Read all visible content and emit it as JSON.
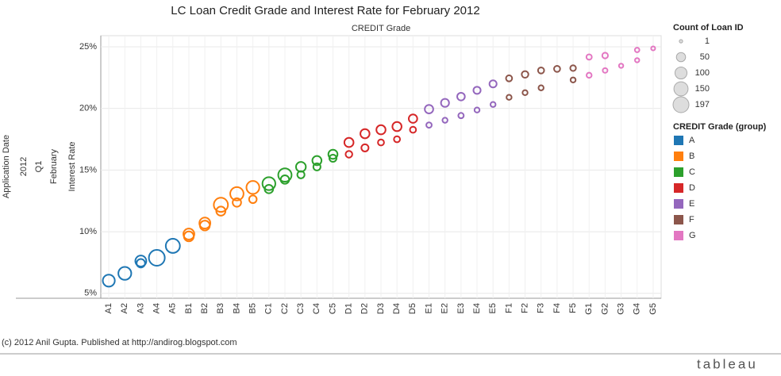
{
  "chart_data": {
    "type": "bubble",
    "title": "LC Loan Credit Grade and Interest Rate for February 2012",
    "subtitle": "CREDIT Grade",
    "row_headers": [
      "Application Date",
      "2012",
      "Q1",
      "February"
    ],
    "ylabel": "Interest Rate",
    "categories": [
      "A1",
      "A2",
      "A3",
      "A4",
      "A5",
      "B1",
      "B2",
      "B3",
      "B4",
      "B5",
      "C1",
      "C2",
      "C3",
      "C4",
      "C5",
      "D1",
      "D2",
      "D3",
      "D4",
      "D5",
      "E1",
      "E2",
      "E3",
      "E4",
      "E5",
      "F1",
      "F2",
      "F3",
      "F4",
      "F5",
      "G1",
      "G2",
      "G3",
      "G4",
      "G5"
    ],
    "ylim": [
      4.6,
      25.9
    ],
    "yticks": [
      {
        "value": 5,
        "label": "5%"
      },
      {
        "value": 10,
        "label": "10%"
      },
      {
        "value": 15,
        "label": "15%"
      },
      {
        "value": 20,
        "label": "20%"
      },
      {
        "value": 25,
        "label": "25%"
      }
    ],
    "grid": true,
    "size_legend": {
      "title": "Count of Loan ID",
      "sizes": [
        1,
        50,
        100,
        150,
        197
      ]
    },
    "color_legend_title": "CREDIT Grade (group)",
    "series": [
      {
        "name": "A",
        "color": "#1f77b4",
        "categories": [
          "A1",
          "A2",
          "A3",
          "A3",
          "A4",
          "A5"
        ],
        "values": [
          6.03,
          6.62,
          7.62,
          7.44,
          7.88,
          8.85
        ],
        "sizes": [
          100,
          120,
          80,
          40,
          197,
          150
        ]
      },
      {
        "name": "B",
        "color": "#ff7f0e",
        "categories": [
          "B1",
          "B1",
          "B2",
          "B2",
          "B3",
          "B3",
          "B4",
          "B4",
          "B5",
          "B5"
        ],
        "values": [
          9.81,
          9.62,
          10.7,
          10.5,
          12.18,
          11.67,
          13.08,
          12.37,
          13.59,
          12.63
        ],
        "sizes": [
          80,
          60,
          80,
          60,
          150,
          50,
          130,
          40,
          120,
          30
        ]
      },
      {
        "name": "C",
        "color": "#2ca02c",
        "categories": [
          "C1",
          "C1",
          "C2",
          "C2",
          "C3",
          "C3",
          "C4",
          "C4",
          "C5",
          "C5"
        ],
        "values": [
          13.9,
          13.46,
          14.6,
          14.23,
          15.26,
          14.62,
          15.77,
          15.26,
          16.28,
          15.96
        ],
        "sizes": [
          120,
          40,
          130,
          40,
          60,
          25,
          50,
          25,
          50,
          25
        ]
      },
      {
        "name": "D",
        "color": "#d62728",
        "categories": [
          "D1",
          "D1",
          "D2",
          "D2",
          "D3",
          "D3",
          "D4",
          "D4",
          "D5",
          "D5"
        ],
        "values": [
          17.24,
          16.28,
          17.95,
          16.8,
          18.27,
          17.24,
          18.53,
          17.5,
          19.17,
          18.27
        ],
        "sizes": [
          50,
          20,
          50,
          25,
          50,
          15,
          50,
          15,
          40,
          15
        ]
      },
      {
        "name": "E",
        "color": "#9467bd",
        "categories": [
          "E1",
          "E1",
          "E2",
          "E2",
          "E3",
          "E3",
          "E4",
          "E4",
          "E5",
          "E5"
        ],
        "values": [
          19.94,
          18.65,
          20.45,
          19.04,
          20.96,
          19.42,
          21.47,
          19.87,
          21.99,
          20.32
        ],
        "sizes": [
          40,
          10,
          35,
          8,
          30,
          10,
          25,
          8,
          25,
          8
        ]
      },
      {
        "name": "F",
        "color": "#8c564b",
        "categories": [
          "F1",
          "F1",
          "F2",
          "F2",
          "F3",
          "F3",
          "F4",
          "F5",
          "F5"
        ],
        "values": [
          22.44,
          20.9,
          22.76,
          21.28,
          23.08,
          21.67,
          23.21,
          23.27,
          22.31
        ],
        "sizes": [
          15,
          8,
          20,
          8,
          15,
          8,
          15,
          12,
          8
        ]
      },
      {
        "name": "G",
        "color": "#e377c2",
        "categories": [
          "G1",
          "G1",
          "G2",
          "G2",
          "G3",
          "G4",
          "G4",
          "G5"
        ],
        "values": [
          24.17,
          22.69,
          24.29,
          23.08,
          23.46,
          24.74,
          23.91,
          24.87
        ],
        "sizes": [
          10,
          8,
          12,
          6,
          4,
          5,
          4,
          3
        ]
      }
    ],
    "footer": "(c) 2012 Anil Gupta. Published at http://andirog.blogspot.com",
    "logo": "tableau"
  }
}
